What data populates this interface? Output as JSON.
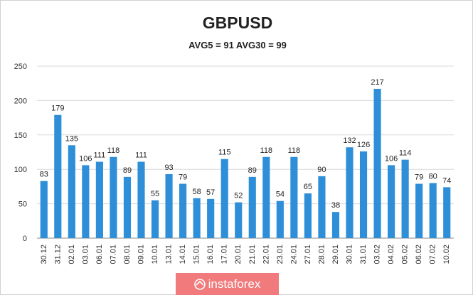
{
  "chart_data": {
    "type": "bar",
    "title": "GBPUSD",
    "subtitle": "AVG5 = 91 AVG30 = 99",
    "xlabel": "",
    "ylabel": "",
    "ylim": [
      0,
      250
    ],
    "yticks": [
      0,
      50,
      100,
      150,
      200,
      250
    ],
    "grid": true,
    "bar_color": "#2e8fd8",
    "categories": [
      "30.12",
      "31.12",
      "02.01",
      "03.01",
      "06.01",
      "07.01",
      "08.01",
      "09.01",
      "10.01",
      "13.01",
      "14.01",
      "15.01",
      "16.01",
      "17.01",
      "20.01",
      "21.01",
      "22.01",
      "23.01",
      "24.01",
      "27.01",
      "28.01",
      "29.01",
      "30.01",
      "31.01",
      "03.02",
      "04.02",
      "05.02",
      "06.02",
      "07.02",
      "10.02"
    ],
    "values": [
      83,
      179,
      135,
      106,
      111,
      118,
      89,
      111,
      55,
      93,
      79,
      58,
      57,
      115,
      52,
      89,
      118,
      54,
      118,
      65,
      90,
      38,
      132,
      126,
      217,
      106,
      114,
      79,
      80,
      74
    ]
  },
  "watermark": {
    "text": "instaforex",
    "color": "#f07a7c"
  }
}
